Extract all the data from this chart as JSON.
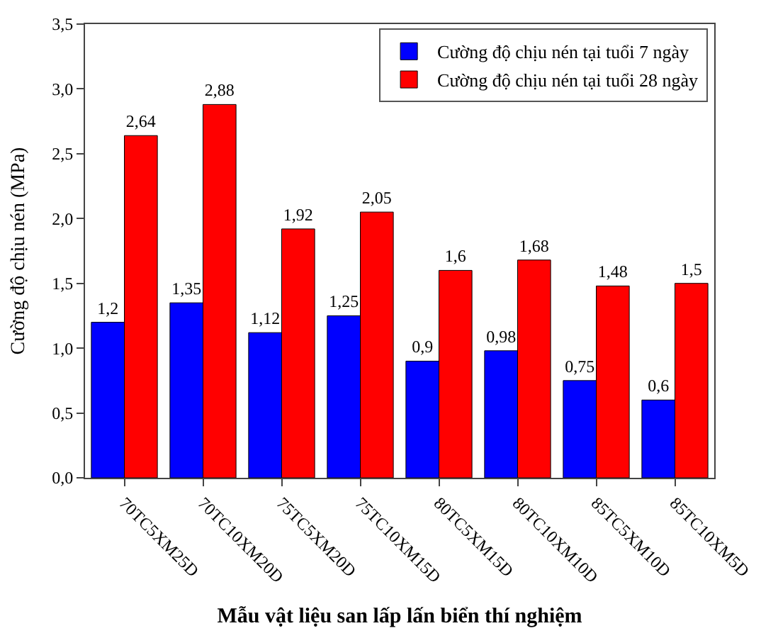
{
  "chart_data": {
    "type": "bar",
    "xlabel": "Mẫu vật liệu san lấp lấn biển thí nghiệm",
    "ylabel": "Cường độ chịu nén (MPa)",
    "categories": [
      "70TC5XM25D",
      "70TC10XM20D",
      "75TC5XM20D",
      "75TC10XM15D",
      "80TC5XM15D",
      "80TC10XM10D",
      "85TC5XM10D",
      "85TC10XM5D"
    ],
    "series": [
      {
        "name": "Cường độ chịu nén tại tuổi 7 ngày",
        "color": "#0000ff",
        "values": [
          1.2,
          1.35,
          1.12,
          1.25,
          0.9,
          0.98,
          0.75,
          0.6
        ],
        "value_labels": [
          "1,2",
          "1,35",
          "1,12",
          "1,25",
          "0,9",
          "0,98",
          "0,75",
          "0,6"
        ]
      },
      {
        "name": "Cường độ chịu nén tại tuổi 28 ngày",
        "color": "#ff0000",
        "values": [
          2.64,
          2.88,
          1.92,
          2.05,
          1.6,
          1.68,
          1.48,
          1.5
        ],
        "value_labels": [
          "2,64",
          "2,88",
          "1,92",
          "2,05",
          "1,6",
          "1,68",
          "1,48",
          "1,5"
        ]
      }
    ],
    "ylim": [
      0,
      3.5
    ],
    "yticks": [
      {
        "value": 0,
        "label": "0,0"
      },
      {
        "value": 0.5,
        "label": "0,5"
      },
      {
        "value": 1,
        "label": "1,0"
      },
      {
        "value": 1.5,
        "label": "1,5"
      },
      {
        "value": 2,
        "label": "2,0"
      },
      {
        "value": 2.5,
        "label": "2,5"
      },
      {
        "value": 3,
        "label": "3,0"
      },
      {
        "value": 3.5,
        "label": "3,5"
      }
    ],
    "legend": "top right"
  }
}
